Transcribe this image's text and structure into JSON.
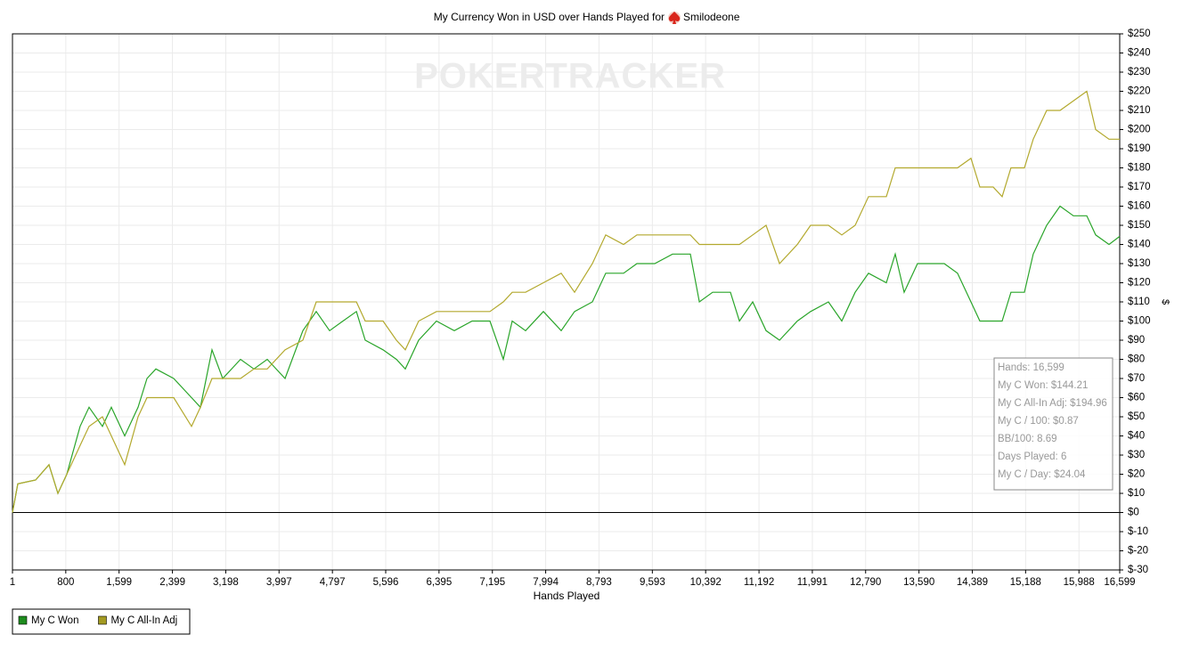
{
  "chart_data": {
    "type": "line",
    "title": "My Currency Won in USD over Hands Played for",
    "player": "Smilodeone",
    "watermark": "POKERTRACKER",
    "x_label": "Hands Played",
    "y_label": "$",
    "x": [
      1,
      81,
      348,
      548,
      682,
      815,
      1015,
      1149,
      1350,
      1483,
      1683,
      1884,
      2017,
      2151,
      2418,
      2685,
      2818,
      2992,
      3152,
      3419,
      3620,
      3820,
      4087,
      4354,
      4555,
      4755,
      4955,
      5156,
      5289,
      5556,
      5756,
      5890,
      6090,
      6357,
      6624,
      6891,
      7158,
      7359,
      7492,
      7692,
      7959,
      8227,
      8427,
      8694,
      8894,
      9161,
      9362,
      9629,
      9896,
      10163,
      10297,
      10497,
      10764,
      10898,
      11098,
      11298,
      11499,
      11766,
      11966,
      12233,
      12433,
      12633,
      12834,
      13101,
      13234,
      13368,
      13568,
      13835,
      13968,
      14168,
      14369,
      14502,
      14702,
      14836,
      14969,
      15170,
      15303,
      15504,
      15704,
      15904,
      16105,
      16238,
      16439,
      16599
    ],
    "series": [
      {
        "name": "My C Won",
        "color": "#2aa52a",
        "legend_color": "#1e8c1e",
        "values": [
          0,
          15,
          17,
          25,
          10,
          20,
          45,
          55,
          45,
          55,
          40,
          55,
          70,
          75,
          70,
          60,
          55,
          85,
          70,
          80,
          75,
          80,
          70,
          95,
          105,
          95,
          100,
          105,
          90,
          85,
          80,
          75,
          90,
          100,
          95,
          100,
          100,
          80,
          100,
          95,
          105,
          95,
          105,
          110,
          125,
          125,
          130,
          130,
          135,
          135,
          110,
          115,
          115,
          100,
          110,
          95,
          90,
          100,
          105,
          110,
          100,
          115,
          125,
          120,
          135,
          115,
          130,
          130,
          130,
          125,
          110,
          100,
          100,
          100,
          115,
          115,
          135,
          150,
          160,
          155,
          155,
          145,
          140,
          144.21
        ]
      },
      {
        "name": "My C All-In Adj",
        "color": "#b3a92e",
        "legend_color": "#a39a22",
        "values": [
          0,
          15,
          17,
          25,
          10,
          20,
          35,
          45,
          50,
          40,
          25,
          50,
          60,
          60,
          60,
          45,
          55,
          70,
          70,
          70,
          75,
          75,
          85,
          90,
          110,
          110,
          110,
          110,
          100,
          100,
          90,
          85,
          100,
          105,
          105,
          105,
          105,
          110,
          115,
          115,
          120,
          125,
          115,
          130,
          145,
          140,
          145,
          145,
          145,
          145,
          140,
          140,
          140,
          140,
          145,
          150,
          130,
          140,
          150,
          150,
          145,
          150,
          165,
          165,
          180,
          180,
          180,
          180,
          180,
          180,
          185,
          170,
          170,
          165,
          180,
          180,
          195,
          210,
          210,
          215,
          220,
          200,
          195,
          194.96
        ]
      }
    ],
    "xlim": [
      1,
      16599
    ],
    "ylim": [
      -30,
      250
    ],
    "xticks": [
      1,
      800,
      {
        "value": 1599,
        "label": "1,599"
      },
      {
        "value": 2399,
        "label": "2,399"
      },
      {
        "value": 3198,
        "label": "3,198"
      },
      {
        "value": 3997,
        "label": "3,997"
      },
      {
        "value": 4797,
        "label": "4,797"
      },
      {
        "value": 5596,
        "label": "5,596"
      },
      {
        "value": 6395,
        "label": "6,395"
      },
      {
        "value": 7195,
        "label": "7,195"
      },
      {
        "value": 7994,
        "label": "7,994"
      },
      {
        "value": 8793,
        "label": "8,793"
      },
      {
        "value": 9593,
        "label": "9,593"
      },
      {
        "value": 10392,
        "label": "10,392"
      },
      {
        "value": 11192,
        "label": "11,192"
      },
      {
        "value": 11991,
        "label": "11,991"
      },
      {
        "value": 12790,
        "label": "12,790"
      },
      {
        "value": 13590,
        "label": "13,590"
      },
      {
        "value": 14389,
        "label": "14,389"
      },
      {
        "value": 15188,
        "label": "15,188"
      },
      {
        "value": 15988,
        "label": "15,988"
      },
      {
        "value": 16599,
        "label": "16,599"
      }
    ],
    "yticks": [
      {
        "value": -30,
        "label": "$-30"
      },
      {
        "value": -20,
        "label": "$-20"
      },
      {
        "value": -10,
        "label": "$-10"
      },
      {
        "value": 0,
        "label": "$0"
      },
      {
        "value": 10,
        "label": "$10"
      },
      {
        "value": 20,
        "label": "$20"
      },
      {
        "value": 30,
        "label": "$30"
      },
      {
        "value": 40,
        "label": "$40"
      },
      {
        "value": 50,
        "label": "$50"
      },
      {
        "value": 60,
        "label": "$60"
      },
      {
        "value": 70,
        "label": "$70"
      },
      {
        "value": 80,
        "label": "$80"
      },
      {
        "value": 90,
        "label": "$90"
      },
      {
        "value": 100,
        "label": "$100"
      },
      {
        "value": 110,
        "label": "$110"
      },
      {
        "value": 120,
        "label": "$120"
      },
      {
        "value": 130,
        "label": "$130"
      },
      {
        "value": 140,
        "label": "$140"
      },
      {
        "value": 150,
        "label": "$150"
      },
      {
        "value": 160,
        "label": "$160"
      },
      {
        "value": 170,
        "label": "$170"
      },
      {
        "value": 180,
        "label": "$180"
      },
      {
        "value": 190,
        "label": "$190"
      },
      {
        "value": 200,
        "label": "$200"
      },
      {
        "value": 210,
        "label": "$210"
      },
      {
        "value": 220,
        "label": "$220"
      },
      {
        "value": 230,
        "label": "$230"
      },
      {
        "value": 240,
        "label": "$240"
      },
      {
        "value": 250,
        "label": "$250"
      }
    ],
    "grid": true,
    "legend": "bottom-left",
    "tooltip": [
      "Hands: 16,599",
      "My C Won: $144.21",
      "My C All-In Adj: $194.96",
      "My C / 100: $0.87",
      "BB/100: 8.69",
      "Days Played: 6",
      "My C / Day: $24.04"
    ]
  }
}
